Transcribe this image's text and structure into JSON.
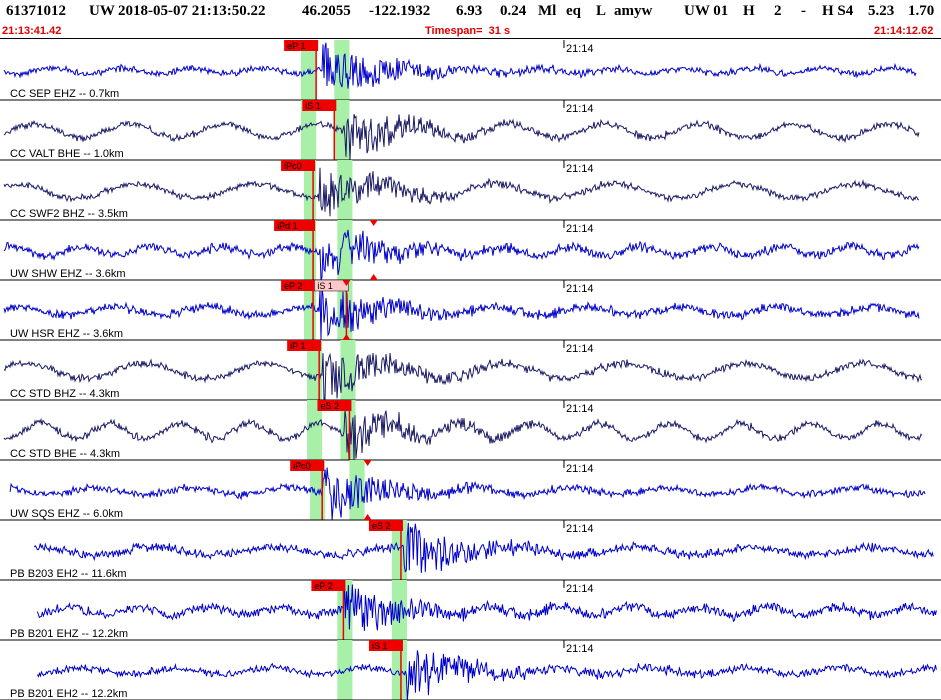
{
  "header": {
    "event_id": "61371012",
    "network": "UW",
    "origin_time": "2018-05-07 21:13:50.22",
    "lat": "46.2055",
    "lon": "-122.1932",
    "depth": "6.93",
    "magnitude": "0.24",
    "mag_type": "Ml",
    "event_type": "eq",
    "status": "L",
    "analyst": "amyw",
    "agency": "UW 01",
    "flag1": "H",
    "count": "2",
    "dash": "-",
    "quality": "H S4",
    "val1": "5.23",
    "val2": "1.70",
    "start_time": "21:13:41.42",
    "timespan": "Timespan=  31 s",
    "end_time": "21:14:12.62"
  },
  "chart_data": {
    "type": "line",
    "title": "",
    "xlabel": "",
    "ylabel": "",
    "time_label": "21:14",
    "time_range_seconds": [
      0,
      31
    ],
    "minute_mark_seconds": 18.58,
    "colors": {
      "waveform_blue": "#0000cc",
      "waveform_navy": "#1a1a66",
      "pick_red": "#ee0000",
      "pick_pink": "#ffc8c8",
      "window_green": "#a8f0a8"
    },
    "channels": [
      {
        "label": "CC SEP EHZ -- 0.7km",
        "color": "blue",
        "start": 0.1,
        "end": 30.2,
        "onset": 10.6,
        "amp": 0.5,
        "green_windows": [
          [
            9.9,
            10.4
          ],
          [
            11.0,
            11.5
          ]
        ],
        "picks": [
          {
            "label": "eP 1",
            "t": 10.4,
            "style": "red"
          }
        ]
      },
      {
        "label": "CC VALT BHE -- 1.0km",
        "color": "navy",
        "start": 0.1,
        "end": 30.3,
        "onset": 11.3,
        "amp": 0.55,
        "green_windows": [
          [
            9.9,
            10.4
          ],
          [
            11.0,
            11.5
          ]
        ],
        "picks": [
          {
            "label": "iS 1",
            "t": 11.0,
            "style": "red"
          }
        ]
      },
      {
        "label": "CC SWF2 BHZ -- 3.5km",
        "color": "navy",
        "start": 0.1,
        "end": 30.3,
        "onset": 10.5,
        "amp": 0.55,
        "green_windows": [
          [
            10.0,
            10.4
          ],
          [
            11.1,
            11.6
          ]
        ],
        "picks": [
          {
            "label": "iPc0",
            "t": 10.3,
            "style": "red"
          }
        ]
      },
      {
        "label": "UW SHW EHZ -- 3.6km",
        "color": "blue",
        "start": 0.1,
        "end": 30.3,
        "onset": 10.5,
        "amp": 0.75,
        "green_windows": [
          [
            10.0,
            10.4
          ],
          [
            11.1,
            11.6
          ]
        ],
        "picks": [
          {
            "label": "iPd 1",
            "t": 10.3,
            "style": "red"
          }
        ]
      },
      {
        "label": "UW HSR EHZ -- 3.6km",
        "color": "blue",
        "start": 0.1,
        "end": 30.3,
        "onset": 10.5,
        "amp": 0.7,
        "green_windows": [
          [
            10.0,
            10.4
          ],
          [
            11.1,
            11.6
          ]
        ],
        "picks": [
          {
            "label": "eP 2",
            "t": 10.3,
            "style": "red"
          },
          {
            "label": "iS 1",
            "t": 11.4,
            "style": "pink"
          }
        ]
      },
      {
        "label": "CC STD BHZ -- 4.3km",
        "color": "navy",
        "start": 0.1,
        "end": 30.4,
        "onset": 10.6,
        "amp": 0.6,
        "green_windows": [
          [
            10.1,
            10.6
          ],
          [
            11.2,
            11.7
          ]
        ],
        "picks": [
          {
            "label": "iP 1",
            "t": 10.5,
            "style": "red"
          }
        ]
      },
      {
        "label": "CC STD BHE -- 4.3km",
        "color": "navy",
        "start": 0.1,
        "end": 30.4,
        "onset": 11.3,
        "amp": 0.6,
        "green_windows": [
          [
            10.1,
            10.6
          ],
          [
            11.2,
            11.7
          ]
        ],
        "picks": [
          {
            "label": "eS 2",
            "t": 11.5,
            "style": "red"
          }
        ]
      },
      {
        "label": "UW SQS EHZ -- 6.0km",
        "color": "blue",
        "start": 0.3,
        "end": 30.5,
        "onset": 10.6,
        "amp": 0.6,
        "green_windows": [
          [
            10.2,
            10.7
          ],
          [
            11.5,
            12.0
          ]
        ],
        "picks": [
          {
            "label": "iPc0",
            "t": 10.6,
            "style": "red"
          }
        ]
      },
      {
        "label": "PB B203 EH2 -- 11.6km",
        "color": "blue",
        "start": 1.1,
        "end": 30.8,
        "onset": 13.3,
        "amp": 0.7,
        "green_windows": [
          [
            12.9,
            13.4
          ]
        ],
        "picks": [
          {
            "label": "eS 2",
            "t": 13.2,
            "style": "red"
          }
        ]
      },
      {
        "label": "PB B201 EHZ -- 12.2km",
        "color": "blue",
        "start": 1.2,
        "end": 30.9,
        "onset": 11.3,
        "amp": 0.75,
        "green_windows": [
          [
            11.1,
            11.6
          ],
          [
            12.9,
            13.4
          ]
        ],
        "picks": [
          {
            "label": "eP 2",
            "t": 11.3,
            "style": "red"
          }
        ]
      },
      {
        "label": "PB B201 EH2 -- 12.2km",
        "color": "blue",
        "start": 1.2,
        "end": 30.9,
        "onset": 13.4,
        "amp": 0.6,
        "green_windows": [
          [
            11.1,
            11.6
          ],
          [
            12.9,
            13.4
          ]
        ],
        "picks": [
          {
            "label": "iS 1",
            "t": 13.2,
            "style": "red"
          }
        ]
      }
    ]
  }
}
